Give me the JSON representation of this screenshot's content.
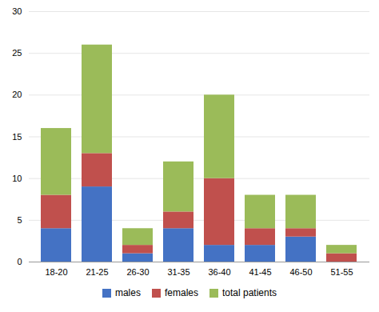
{
  "chart_data": {
    "type": "bar",
    "stacked": true,
    "categories": [
      "18-20",
      "21-25",
      "26-30",
      "31-35",
      "36-40",
      "41-45",
      "46-50",
      "51-55"
    ],
    "series": [
      {
        "name": "males",
        "color": "#4472c4",
        "values": [
          4,
          9,
          1,
          4,
          2,
          2,
          3,
          0
        ]
      },
      {
        "name": "females",
        "color": "#c0504d",
        "values": [
          4,
          4,
          1,
          2,
          8,
          2,
          1,
          1
        ]
      },
      {
        "name": "total patients",
        "color": "#9bbb59",
        "values": [
          8,
          13,
          2,
          6,
          10,
          4,
          4,
          1
        ]
      }
    ],
    "ylim": [
      0,
      30
    ],
    "yticks": [
      0,
      5,
      10,
      15,
      20,
      25,
      30
    ],
    "grid": true,
    "legend": "bottom"
  }
}
